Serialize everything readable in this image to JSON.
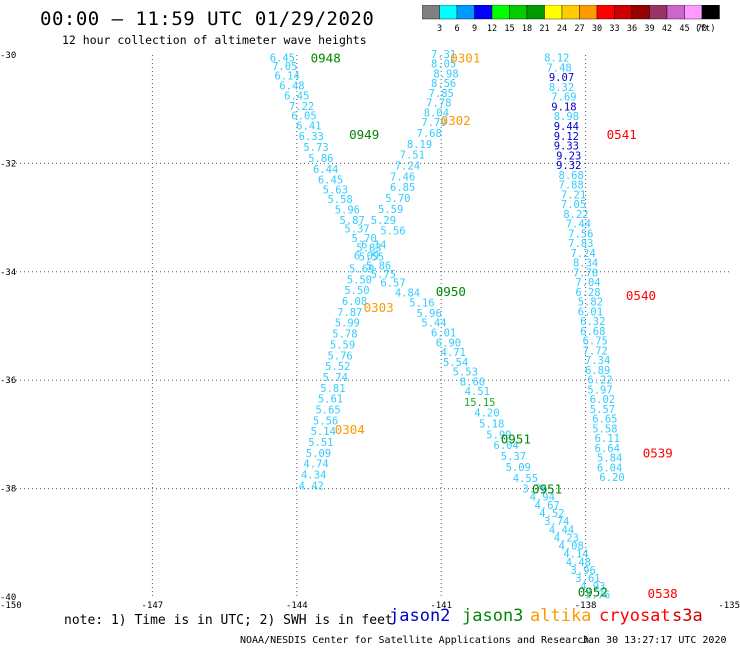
{
  "header": {
    "title": "00:00 – 11:59 UTC 01/29/2020",
    "subtitle": "12 hour collection of altimeter wave heights"
  },
  "colorbar": {
    "unit": "(ft)",
    "colors": [
      "#808080",
      "#00ffff",
      "#0099ff",
      "#0000ff",
      "#00ff00",
      "#00cc00",
      "#009900",
      "#ffff00",
      "#ffcc00",
      "#ff9900",
      "#ff0000",
      "#cc0000",
      "#990000",
      "#993366",
      "#cc66cc",
      "#ff99ff",
      "#000000"
    ],
    "labels": [
      "3",
      "6",
      "9",
      "12",
      "15",
      "18",
      "21",
      "24",
      "27",
      "30",
      "33",
      "36",
      "39",
      "42",
      "45",
      "70"
    ]
  },
  "footer": {
    "note": "note: 1) Time is in UTC; 2) SWH is in feet",
    "satellites": [
      {
        "name": "jason2",
        "color": "#0000cc"
      },
      {
        "name": "jason3",
        "color": "#008800"
      },
      {
        "name": "altika",
        "color": "#ff9900"
      },
      {
        "name": "cryosat",
        "color": "#ff0000"
      },
      {
        "name": "s3a",
        "color": "#cc0000"
      }
    ],
    "credit": "NOAA/NESDIS Center for Satellite Applications and Research",
    "timestamp": "Jan 30 13:27:17 UTC 2020"
  },
  "chart_data": {
    "type": "scatter",
    "xlim": [
      -150,
      -135
    ],
    "ylim": [
      -40,
      -30
    ],
    "x_ticks": [
      "-150",
      "-147",
      "-144",
      "-141",
      "-138",
      "-135"
    ],
    "y_ticks": [
      "-30",
      "-32",
      "-34",
      "-36",
      "-38",
      "-40"
    ],
    "grid": true,
    "tracks": [
      {
        "satellite": "jason3",
        "color": "#33ccff",
        "points": [
          [
            -144.3,
            -30.05,
            "6.45"
          ],
          [
            -144.25,
            -30.2,
            "7.05"
          ],
          [
            -144.2,
            -30.38,
            "6.14"
          ],
          [
            -144.1,
            -30.56,
            "6.48"
          ],
          [
            -144.0,
            -30.75,
            "6.45"
          ],
          [
            -143.9,
            -30.94,
            "7.22"
          ],
          [
            -143.85,
            -31.12,
            "6.05"
          ],
          [
            -143.75,
            -31.3,
            "6.41"
          ],
          [
            -143.7,
            -31.49,
            "6.33"
          ],
          [
            -143.6,
            -31.7,
            "5.73"
          ],
          [
            -143.5,
            -31.9,
            "5.86"
          ],
          [
            -143.4,
            -32.1,
            "6.44"
          ],
          [
            -143.3,
            -32.3,
            "6.45"
          ],
          [
            -143.2,
            -32.48,
            "5.63"
          ],
          [
            -143.1,
            -32.66,
            "5.58"
          ],
          [
            -142.95,
            -32.85,
            "5.96"
          ],
          [
            -142.85,
            -33.04,
            "5.87"
          ],
          [
            -142.75,
            -33.2,
            "5.37"
          ],
          [
            -142.6,
            -33.38,
            "5.70"
          ],
          [
            -142.5,
            -33.55,
            "5.83"
          ],
          [
            -142.45,
            -33.72,
            "5.55"
          ],
          [
            -142.3,
            -33.88,
            "5.86"
          ],
          [
            -142.2,
            -34.04,
            "5.75"
          ],
          [
            -142.0,
            -34.2,
            "6.57"
          ],
          [
            -141.7,
            -34.38,
            "4.84"
          ],
          [
            -141.4,
            -34.57,
            "5.16"
          ],
          [
            -141.25,
            -34.76,
            "5.96"
          ],
          [
            -141.15,
            -34.94,
            "5.44"
          ],
          [
            -140.95,
            -35.12,
            "6.01"
          ],
          [
            -140.85,
            -35.3,
            "6.90"
          ],
          [
            -140.75,
            -35.48,
            "4.71"
          ],
          [
            -140.7,
            -35.66,
            "5.54"
          ],
          [
            -140.5,
            -35.84,
            "5.53"
          ],
          [
            -140.35,
            -36.02,
            "8.60"
          ],
          [
            -140.25,
            -36.2,
            "4.51"
          ],
          [
            -140.2,
            -36.4,
            "15.15"
          ],
          [
            -140.05,
            -36.6,
            "4.20"
          ],
          [
            -139.95,
            -36.8,
            "5.18"
          ],
          [
            -139.8,
            -37.0,
            "5.99"
          ],
          [
            -139.65,
            -37.2,
            "6.04"
          ],
          [
            -139.5,
            -37.4,
            "5.37"
          ],
          [
            -139.4,
            -37.6,
            "5.09"
          ],
          [
            -139.25,
            -37.8,
            "4.55"
          ],
          [
            -139.05,
            -38.0,
            "3.76"
          ],
          [
            -138.9,
            -38.15,
            "4.94"
          ],
          [
            -138.8,
            -38.3,
            "4.67"
          ],
          [
            -138.7,
            -38.45,
            "4.52"
          ],
          [
            -138.6,
            -38.6,
            "3.74"
          ],
          [
            -138.5,
            -38.75,
            "4.44"
          ],
          [
            -138.4,
            -38.9,
            "4.23"
          ],
          [
            -138.3,
            -39.05,
            "4.08"
          ],
          [
            -138.2,
            -39.2,
            "4.14"
          ],
          [
            -138.15,
            -39.35,
            "4.48"
          ],
          [
            -138.05,
            -39.5,
            "3.96"
          ],
          [
            -137.95,
            -39.65,
            "3.61"
          ],
          [
            -137.85,
            -39.8,
            "4.93"
          ],
          [
            -137.75,
            -39.95,
            "3.76"
          ]
        ]
      },
      {
        "satellite": "altika",
        "color": "#33ccff",
        "points": [
          [
            -140.95,
            -29.98,
            "7.31"
          ],
          [
            -140.95,
            -30.16,
            "8.05"
          ],
          [
            -140.9,
            -30.34,
            "8.98"
          ],
          [
            -140.95,
            -30.52,
            "8.56"
          ],
          [
            -141.0,
            -30.7,
            "7.85"
          ],
          [
            -141.05,
            -30.88,
            "7.78"
          ],
          [
            -141.1,
            -31.06,
            "8.04"
          ],
          [
            -141.15,
            -31.24,
            "7.79"
          ],
          [
            -141.25,
            -31.44,
            "7.68"
          ],
          [
            -141.45,
            -31.64,
            "8.19"
          ],
          [
            -141.6,
            -31.84,
            "7.51"
          ],
          [
            -141.7,
            -32.04,
            "7.24"
          ],
          [
            -141.8,
            -32.24,
            "7.46"
          ],
          [
            -141.8,
            -32.44,
            "6.85"
          ],
          [
            -141.9,
            -32.64,
            "5.70"
          ],
          [
            -142.05,
            -32.84,
            "5.59"
          ],
          [
            -142.2,
            -33.04,
            "5.29"
          ],
          [
            -142.0,
            -33.24,
            "5.56"
          ],
          [
            -142.4,
            -33.5,
            "6.14"
          ],
          [
            -142.55,
            -33.7,
            "6.09"
          ],
          [
            -142.65,
            -33.94,
            "5.69"
          ],
          [
            -142.7,
            -34.14,
            "5.50"
          ],
          [
            -142.75,
            -34.34,
            "5.50"
          ],
          [
            -142.8,
            -34.54,
            "6.08"
          ],
          [
            -142.9,
            -34.74,
            "7.87"
          ],
          [
            -142.95,
            -34.94,
            "5.99"
          ],
          [
            -143.0,
            -35.14,
            "5.78"
          ],
          [
            -143.05,
            -35.34,
            "5.59"
          ],
          [
            -143.1,
            -35.54,
            "5.76"
          ],
          [
            -143.15,
            -35.74,
            "5.52"
          ],
          [
            -143.2,
            -35.94,
            "5.74"
          ],
          [
            -143.25,
            -36.14,
            "5.81"
          ],
          [
            -143.3,
            -36.34,
            "5.61"
          ],
          [
            -143.35,
            -36.54,
            "5.65"
          ],
          [
            -143.4,
            -36.74,
            "5.56"
          ],
          [
            -143.45,
            -36.94,
            "5.14"
          ],
          [
            -143.5,
            -37.14,
            "5.51"
          ],
          [
            -143.55,
            -37.34,
            "5.09"
          ],
          [
            -143.6,
            -37.54,
            "4.74"
          ],
          [
            -143.65,
            -37.74,
            "4.34"
          ],
          [
            -143.7,
            -37.94,
            "4.42"
          ]
        ]
      },
      {
        "satellite": "cryosat",
        "color": "#33ccff",
        "points": [
          [
            -138.6,
            -30.05,
            "8.12"
          ],
          [
            -138.55,
            -30.23,
            "7.48"
          ],
          [
            -138.5,
            -30.41,
            "9.07"
          ],
          [
            -138.5,
            -30.59,
            "8.32"
          ],
          [
            -138.45,
            -30.77,
            "7.69"
          ],
          [
            -138.45,
            -30.95,
            "9.18"
          ],
          [
            -138.4,
            -31.13,
            "8.98"
          ],
          [
            -138.4,
            -31.31,
            "9.44"
          ],
          [
            -138.4,
            -31.49,
            "9.12"
          ],
          [
            -138.4,
            -31.67,
            "9.33"
          ],
          [
            -138.35,
            -31.85,
            "9.23"
          ],
          [
            -138.35,
            -32.03,
            "9.32"
          ],
          [
            -138.3,
            -32.21,
            "8.68"
          ],
          [
            -138.3,
            -32.39,
            "7.88"
          ],
          [
            -138.25,
            -32.57,
            "7.21"
          ],
          [
            -138.25,
            -32.75,
            "7.05"
          ],
          [
            -138.2,
            -32.93,
            "8.22"
          ],
          [
            -138.15,
            -33.11,
            "7.44"
          ],
          [
            -138.1,
            -33.29,
            "7.56"
          ],
          [
            -138.1,
            -33.47,
            "7.83"
          ],
          [
            -138.05,
            -33.65,
            "7.24"
          ],
          [
            -138.0,
            -33.83,
            "8.34"
          ],
          [
            -138.0,
            -34.01,
            "7.70"
          ],
          [
            -137.95,
            -34.19,
            "7.04"
          ],
          [
            -137.95,
            -34.37,
            "6.28"
          ],
          [
            -137.9,
            -34.55,
            "5.82"
          ],
          [
            -137.9,
            -34.73,
            "6.01"
          ],
          [
            -137.85,
            -34.91,
            "6.32"
          ],
          [
            -137.85,
            -35.09,
            "6.68"
          ],
          [
            -137.8,
            -35.27,
            "6.75"
          ],
          [
            -137.8,
            -35.45,
            "7.72"
          ],
          [
            -137.75,
            -35.63,
            "7.34"
          ],
          [
            -137.75,
            -35.81,
            "6.89"
          ],
          [
            -137.7,
            -35.99,
            "6.22"
          ],
          [
            -137.7,
            -36.17,
            "5.97"
          ],
          [
            -137.65,
            -36.35,
            "6.02"
          ],
          [
            -137.65,
            -36.53,
            "5.57"
          ],
          [
            -137.6,
            -36.71,
            "6.65"
          ],
          [
            -137.6,
            -36.89,
            "5.58"
          ],
          [
            -137.55,
            -37.07,
            "6.11"
          ],
          [
            -137.55,
            -37.25,
            "6.64"
          ],
          [
            -137.5,
            -37.43,
            "5.84"
          ],
          [
            -137.5,
            -37.61,
            "6.04"
          ],
          [
            -137.45,
            -37.79,
            "6.20"
          ]
        ]
      }
    ],
    "time_labels": [
      {
        "text": "0948",
        "satellite": "jason3",
        "color": "#008800",
        "x": -143.4,
        "y": -30.05
      },
      {
        "text": "0949",
        "satellite": "jason3",
        "color": "#008800",
        "x": -142.6,
        "y": -31.46
      },
      {
        "text": "0950",
        "satellite": "jason3",
        "color": "#008800",
        "x": -140.8,
        "y": -34.35
      },
      {
        "text": "0951",
        "satellite": "jason3",
        "color": "#008800",
        "x": -139.45,
        "y": -37.08
      },
      {
        "text": "0951",
        "satellite": "jason3",
        "color": "#008800",
        "x": -138.8,
        "y": -38.0
      },
      {
        "text": "0952",
        "satellite": "jason3",
        "color": "#008800",
        "x": -137.85,
        "y": -39.9
      },
      {
        "text": "0301",
        "satellite": "altika",
        "color": "#ff9900",
        "x": -140.5,
        "y": -30.05
      },
      {
        "text": "0302",
        "satellite": "altika",
        "color": "#ff9900",
        "x": -140.7,
        "y": -31.2
      },
      {
        "text": "0303",
        "satellite": "altika",
        "color": "#ff9900",
        "x": -142.3,
        "y": -34.65
      },
      {
        "text": "0304",
        "satellite": "altika",
        "color": "#ff9900",
        "x": -142.9,
        "y": -36.9
      },
      {
        "text": "0541",
        "satellite": "cryosat",
        "color": "#ff0000",
        "x": -137.25,
        "y": -31.46
      },
      {
        "text": "0540",
        "satellite": "cryosat",
        "color": "#ff0000",
        "x": -136.85,
        "y": -34.43
      },
      {
        "text": "0539",
        "satellite": "cryosat",
        "color": "#ff0000",
        "x": -136.5,
        "y": -37.33
      },
      {
        "text": "0538",
        "satellite": "cryosat",
        "color": "#ff0000",
        "x": -136.4,
        "y": -39.93
      }
    ]
  }
}
